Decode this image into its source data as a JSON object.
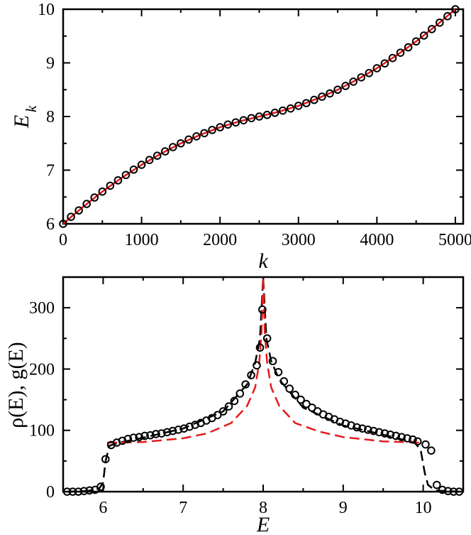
{
  "chart_data": [
    {
      "type": "line",
      "title": "",
      "xlabel": "k",
      "ylabel": "E_k",
      "ylabel_main": "E",
      "ylabel_sub": "k",
      "xlim": [
        0,
        5100
      ],
      "ylim": [
        6,
        10
      ],
      "xticks": [
        0,
        1000,
        2000,
        3000,
        4000,
        5000
      ],
      "xtick_labels": [
        "0",
        "1000",
        "2000",
        "3000",
        "4000",
        "5000"
      ],
      "yticks": [
        6,
        7,
        8,
        9,
        10
      ],
      "ytick_labels": [
        "6",
        "7",
        "8",
        "9",
        "10"
      ],
      "series": [
        {
          "name": "numerical spectrum (open circles)",
          "style": "markers",
          "color": "#000000",
          "x": [
            0,
            100,
            200,
            300,
            400,
            500,
            600,
            700,
            800,
            900,
            1000,
            1100,
            1200,
            1300,
            1400,
            1500,
            1600,
            1700,
            1800,
            1900,
            2000,
            2100,
            2200,
            2300,
            2400,
            2500,
            2600,
            2700,
            2800,
            2900,
            3000,
            3100,
            3200,
            3300,
            3400,
            3500,
            3600,
            3700,
            3800,
            3900,
            4000,
            4100,
            4200,
            4300,
            4400,
            4500,
            4600,
            4700,
            4800,
            4900,
            5000
          ],
          "values": [
            6.0,
            6.13,
            6.25,
            6.37,
            6.49,
            6.6,
            6.71,
            6.81,
            6.91,
            7.01,
            7.1,
            7.19,
            7.27,
            7.35,
            7.43,
            7.5,
            7.57,
            7.63,
            7.69,
            7.75,
            7.8,
            7.85,
            7.89,
            7.93,
            7.97,
            8.0,
            8.03,
            8.07,
            8.11,
            8.15,
            8.2,
            8.25,
            8.31,
            8.37,
            8.43,
            8.5,
            8.57,
            8.65,
            8.73,
            8.81,
            8.9,
            8.99,
            9.09,
            9.19,
            9.29,
            9.4,
            9.51,
            9.63,
            9.75,
            9.87,
            10.0
          ]
        },
        {
          "name": "analytical dispersion (red line)",
          "style": "solid",
          "color": "#e41a1c",
          "x": [
            0,
            250,
            500,
            750,
            1000,
            1250,
            1500,
            1750,
            2000,
            2250,
            2500,
            2750,
            3000,
            3250,
            3500,
            3750,
            4000,
            4250,
            4500,
            4750,
            5000
          ],
          "values": [
            6.0,
            6.31,
            6.6,
            6.86,
            7.1,
            7.31,
            7.5,
            7.66,
            7.8,
            7.91,
            8.0,
            8.09,
            8.2,
            8.34,
            8.5,
            8.69,
            8.9,
            9.14,
            9.4,
            9.69,
            10.0
          ]
        }
      ]
    },
    {
      "type": "line",
      "title": "",
      "xlabel": "E",
      "ylabel": "ρ(E), g(E)",
      "ylabel_main": "ρ(E), g(E)",
      "xlim": [
        5.5,
        10.5
      ],
      "ylim": [
        0,
        350
      ],
      "xticks": [
        6,
        7,
        8,
        9,
        10
      ],
      "xtick_labels": [
        "6",
        "7",
        "8",
        "9",
        "10"
      ],
      "yticks": [
        0,
        100,
        200,
        300
      ],
      "ytick_labels": [
        "0",
        "100",
        "200",
        "300"
      ],
      "series": [
        {
          "name": "ρ(E) histogram (open circles)",
          "style": "markers",
          "color": "#000000",
          "x": [
            5.55,
            5.62,
            5.69,
            5.76,
            5.83,
            5.9,
            5.97,
            6.03,
            6.1,
            6.17,
            6.24,
            6.31,
            6.38,
            6.45,
            6.52,
            6.59,
            6.66,
            6.73,
            6.8,
            6.87,
            6.94,
            7.01,
            7.08,
            7.15,
            7.22,
            7.29,
            7.36,
            7.43,
            7.5,
            7.57,
            7.64,
            7.71,
            7.78,
            7.85,
            7.92,
            7.96,
            8.05,
            8.12,
            8.19,
            8.26,
            8.33,
            8.4,
            8.47,
            8.54,
            8.61,
            8.68,
            8.75,
            8.82,
            8.89,
            8.96,
            9.03,
            9.1,
            9.17,
            9.24,
            9.31,
            9.38,
            9.45,
            9.52,
            9.59,
            9.66,
            9.73,
            9.8,
            9.87,
            9.93,
            10.03,
            10.1,
            10.17,
            10.24,
            10.31,
            10.38,
            10.45
          ],
          "values": [
            0,
            0,
            0,
            1,
            2,
            3,
            8,
            53,
            76,
            80,
            83,
            86,
            88,
            89,
            91,
            92,
            94,
            95,
            97,
            99,
            101,
            103,
            106,
            109,
            112,
            116,
            120,
            125,
            131,
            139,
            148,
            160,
            175,
            190,
            206,
            235,
            250,
            213,
            195,
            180,
            168,
            158,
            150,
            143,
            137,
            131,
            126,
            122,
            118,
            114,
            111,
            108,
            105,
            103,
            101,
            99,
            97,
            95,
            93,
            91,
            89,
            87,
            85,
            82,
            77,
            67,
            11,
            3,
            1,
            0,
            0
          ]
        },
        {
          "name": "peak marker (open circle)",
          "style": "markers",
          "color": "#000000",
          "x": [
            7.99
          ],
          "values": [
            297
          ]
        },
        {
          "name": "ρ(E) guide (black dashed)",
          "style": "dashed",
          "color": "#000000",
          "x": [
            5.55,
            5.8,
            5.95,
            6.0,
            6.03,
            6.08,
            6.2,
            6.5,
            7.0,
            7.5,
            7.8,
            7.9,
            7.96,
            8.0,
            8.04,
            8.1,
            8.2,
            8.5,
            9.0,
            9.5,
            9.9,
            9.97,
            10.02,
            10.06,
            10.15,
            10.45
          ],
          "values": [
            0,
            1,
            5,
            15,
            50,
            75,
            80,
            88,
            103,
            131,
            175,
            210,
            250,
            350,
            250,
            213,
            183,
            137,
            108,
            93,
            80,
            67,
            30,
            11,
            2,
            0
          ]
        },
        {
          "name": "g(E) analytical (red dashed)",
          "style": "dashed",
          "color": "#e41a1c",
          "x": [
            6.05,
            6.2,
            6.5,
            7.0,
            7.3,
            7.6,
            7.8,
            7.9,
            7.95,
            7.98,
            8.0,
            8.02,
            8.05,
            8.1,
            8.2,
            8.4,
            8.7,
            9.0,
            9.5,
            9.95
          ],
          "values": [
            80,
            80,
            81,
            87,
            95,
            112,
            140,
            170,
            210,
            260,
            350,
            260,
            210,
            170,
            140,
            112,
            98,
            89,
            82,
            80
          ]
        }
      ]
    }
  ]
}
